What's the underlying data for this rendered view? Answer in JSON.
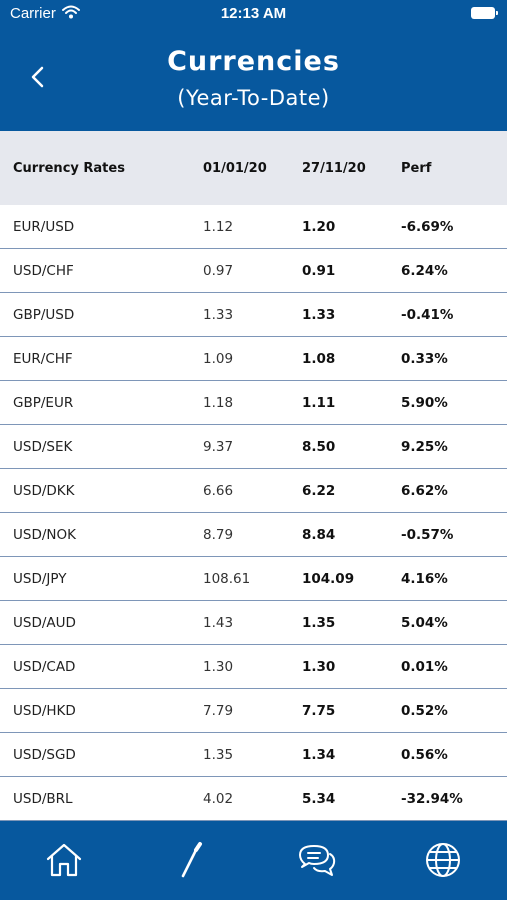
{
  "status_bar": {
    "carrier": "Carrier",
    "time": "12:13 AM"
  },
  "header": {
    "title": "Currencies",
    "subtitle": "(Year-To-Date)"
  },
  "table": {
    "columns": [
      "Currency Rates",
      "01/01/20",
      "27/11/20",
      "Perf"
    ],
    "rows": [
      [
        "EUR/USD",
        "1.12",
        "1.20",
        "-6.69%"
      ],
      [
        "USD/CHF",
        "0.97",
        "0.91",
        "6.24%"
      ],
      [
        "GBP/USD",
        "1.33",
        "1.33",
        "-0.41%"
      ],
      [
        "EUR/CHF",
        "1.09",
        "1.08",
        "0.33%"
      ],
      [
        "GBP/EUR",
        "1.18",
        "1.11",
        "5.90%"
      ],
      [
        "USD/SEK",
        "9.37",
        "8.50",
        "9.25%"
      ],
      [
        "USD/DKK",
        "6.66",
        "6.22",
        "6.62%"
      ],
      [
        "USD/NOK",
        "8.79",
        "8.84",
        "-0.57%"
      ],
      [
        "USD/JPY",
        "108.61",
        "104.09",
        "4.16%"
      ],
      [
        "USD/AUD",
        "1.43",
        "1.35",
        "5.04%"
      ],
      [
        "USD/CAD",
        "1.30",
        "1.30",
        "0.01%"
      ],
      [
        "USD/HKD",
        "7.79",
        "7.75",
        "0.52%"
      ],
      [
        "USD/SGD",
        "1.35",
        "1.34",
        "0.56%"
      ],
      [
        "USD/BRL",
        "4.02",
        "5.34",
        "-32.94%"
      ]
    ]
  },
  "tab_bar": {
    "items": [
      {
        "icon": "home-icon"
      },
      {
        "icon": "pen-icon"
      },
      {
        "icon": "chat-icon"
      },
      {
        "icon": "globe-icon"
      }
    ]
  },
  "colors": {
    "primary": "#07589e",
    "header_row": "#e6e8ee",
    "divider": "#7e96b8"
  }
}
